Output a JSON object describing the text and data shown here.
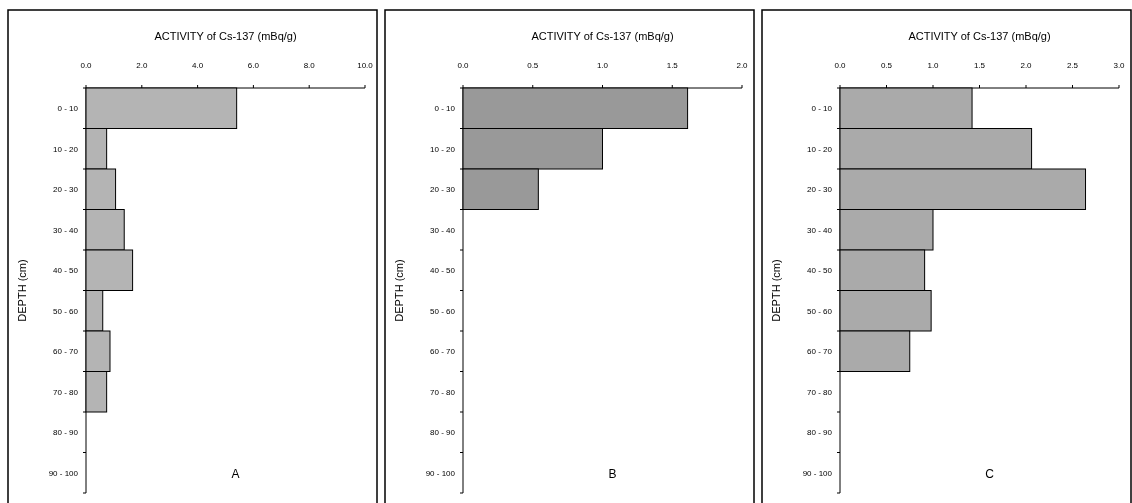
{
  "chart_data": [
    {
      "type": "bar",
      "orientation": "horizontal",
      "xlabel": "ACTIVITY  of Cs-137  (mBq/g)",
      "ylabel": "DEPTH  (cm)",
      "categories": [
        "0  - 10",
        "10 - 20",
        "20 - 30",
        "30 - 40",
        "40 - 50",
        "50 - 60",
        "60 - 70",
        "70 - 80",
        "80 - 90",
        "90 - 100"
      ],
      "values": [
        5.4,
        0.74,
        1.06,
        1.37,
        1.67,
        0.6,
        0.86,
        0.74,
        null,
        null
      ],
      "color": "#b4b4b4",
      "xlim": [
        0,
        10
      ],
      "xticks": [
        {
          "value": 0,
          "label": "0.0"
        },
        {
          "value": 2,
          "label": "2.0"
        },
        {
          "value": 4,
          "label": "4.0"
        },
        {
          "value": 6,
          "label": "6.0"
        },
        {
          "value": 8,
          "label": "8.0"
        },
        {
          "value": 10,
          "label": "10.0"
        }
      ],
      "annotations": [
        "A"
      ]
    },
    {
      "type": "bar",
      "orientation": "horizontal",
      "xlabel": "ACTIVITY  of Cs-137  (mBq/g)",
      "ylabel": "DEPTH  (cm)",
      "categories": [
        "0  - 10",
        "10 - 20",
        "20 - 30",
        "30 - 40",
        "40 - 50",
        "50 - 60",
        "60 - 70",
        "70 - 80",
        "80 - 90",
        "90 - 100"
      ],
      "values": [
        1.61,
        1.0,
        0.54,
        null,
        null,
        null,
        null,
        null,
        null,
        null
      ],
      "color": "#999999",
      "xlim": [
        0,
        2
      ],
      "xticks": [
        {
          "value": 0,
          "label": "0.0"
        },
        {
          "value": 0.5,
          "label": "0.5"
        },
        {
          "value": 1,
          "label": "1.0"
        },
        {
          "value": 1.5,
          "label": "1.5"
        },
        {
          "value": 2,
          "label": "2.0"
        }
      ],
      "annotations": [
        "B"
      ]
    },
    {
      "type": "bar",
      "orientation": "horizontal",
      "xlabel": "ACTIVITY  of  Cs-137  (mBq/g)",
      "ylabel": "DEPTH  (cm)",
      "categories": [
        "0  - 10",
        "10 - 20",
        "20 - 30",
        "30 - 40",
        "40 - 50",
        "50 - 60",
        "60 - 70",
        "70 - 80",
        "80 - 90",
        "90 - 100"
      ],
      "values": [
        1.42,
        2.06,
        2.64,
        1.0,
        0.91,
        0.98,
        0.75,
        null,
        null,
        null
      ],
      "color": "#aaaaaa",
      "xlim": [
        0,
        3
      ],
      "xticks": [
        {
          "value": 0,
          "label": "0.0"
        },
        {
          "value": 0.5,
          "label": "0.5"
        },
        {
          "value": 1,
          "label": "1.0"
        },
        {
          "value": 1.5,
          "label": "1.5"
        },
        {
          "value": 2,
          "label": "2.0"
        },
        {
          "value": 2.5,
          "label": "2.5"
        },
        {
          "value": 3,
          "label": "3.0"
        }
      ],
      "annotations": [
        "C"
      ]
    }
  ]
}
